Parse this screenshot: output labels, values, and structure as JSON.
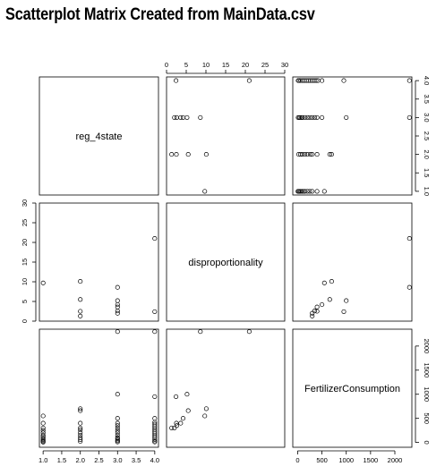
{
  "chart_data": {
    "type": "scatter-matrix",
    "title": "Scatterplot Matrix Created from MainData.csv",
    "variables": [
      "reg_4state",
      "disproportionality",
      "FertilizerConsumption"
    ],
    "axes": [
      {
        "lim": [
          0.9,
          4.1
        ],
        "ticks": [
          1.0,
          1.5,
          2.0,
          2.5,
          3.0,
          3.5,
          4.0
        ],
        "tick_labels": [
          "1.0",
          "1.5",
          "2.0",
          "2.5",
          "3.0",
          "3.5",
          "4.0"
        ]
      },
      {
        "lim": [
          0,
          30
        ],
        "ticks": [
          0,
          5,
          10,
          15,
          20,
          25,
          30
        ],
        "tick_labels": [
          "0",
          "5",
          "10",
          "15",
          "20",
          "25",
          "30"
        ]
      },
      {
        "lim": [
          -100,
          2350
        ],
        "ticks": [
          0,
          500,
          1000,
          1500,
          2000
        ],
        "tick_labels": [
          "0",
          "500",
          "1000",
          "1500",
          "2000"
        ]
      }
    ],
    "observations": {
      "reg_4state": [
        1,
        1,
        1,
        1,
        1,
        1,
        1,
        1,
        1,
        1,
        1,
        1,
        2,
        2,
        2,
        2,
        2,
        2,
        2,
        2,
        2,
        2,
        3,
        3,
        3,
        3,
        3,
        3,
        3,
        3,
        3,
        3,
        3,
        3,
        3,
        3,
        4,
        4,
        4,
        4,
        4,
        4,
        4,
        4,
        4,
        4,
        4,
        4,
        4,
        4,
        4
      ],
      "disproportionality": [
        9.7,
        null,
        null,
        null,
        null,
        null,
        null,
        null,
        null,
        null,
        null,
        null,
        10.1,
        5.5,
        2.5,
        1.3,
        null,
        null,
        null,
        null,
        null,
        null,
        8.6,
        5.2,
        4.2,
        3.6,
        2.6,
        2.0,
        null,
        null,
        null,
        null,
        null,
        null,
        null,
        null,
        21.0,
        2.4,
        null,
        null,
        null,
        null,
        null,
        null,
        null,
        null,
        null,
        null,
        null,
        null,
        null
      ],
      "FertilizerConsumption": [
        550,
        400,
        300,
        250,
        200,
        150,
        120,
        90,
        60,
        40,
        20,
        5,
        700,
        660,
        400,
        300,
        260,
        200,
        150,
        100,
        60,
        20,
        2300,
        1000,
        500,
        400,
        350,
        300,
        250,
        200,
        150,
        100,
        80,
        50,
        30,
        10,
        2300,
        950,
        500,
        420,
        380,
        340,
        300,
        260,
        220,
        180,
        140,
        100,
        60,
        30,
        10
      ]
    },
    "grid": false,
    "legend": "none"
  }
}
